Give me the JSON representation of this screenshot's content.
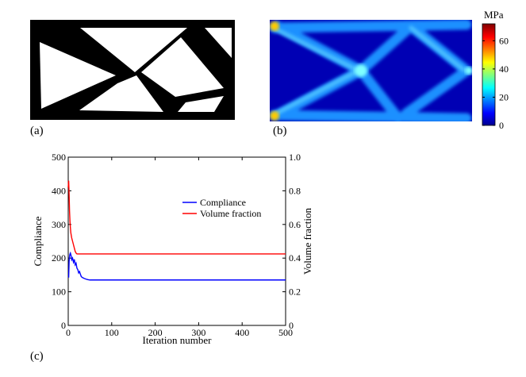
{
  "figure": {
    "panel_a_label": "(a)",
    "panel_b_label": "(b)",
    "panel_c_label": "(c)"
  },
  "panel_b": {
    "colorbar_unit": "MPa",
    "colorbar_ticks": [
      "0",
      "20",
      "40",
      "60"
    ],
    "colorbar_range": [
      0,
      72
    ],
    "colors": [
      "#00008f",
      "#0000ff",
      "#00ffff",
      "#ffff00",
      "#ff0000",
      "#800000"
    ]
  },
  "chart_data": {
    "type": "line",
    "title": "",
    "xlabel": "Iteration number",
    "ylabel": "Compliance",
    "y2label": "Volume fraction",
    "xlim": [
      0,
      500
    ],
    "ylim": [
      0,
      500
    ],
    "y2lim": [
      0,
      1.0
    ],
    "xticks": [
      "0",
      "100",
      "200",
      "300",
      "400",
      "500"
    ],
    "yticks": [
      "0",
      "100",
      "200",
      "300",
      "400",
      "500"
    ],
    "y2ticks": [
      "0",
      "0.2",
      "0.4",
      "0.6",
      "0.8",
      "1.0"
    ],
    "legend_position": "upper-right",
    "series": [
      {
        "name": "Compliance",
        "axis": "left",
        "color": "#0000ff",
        "x": [
          1,
          2,
          3,
          4,
          5,
          6,
          7,
          8,
          10,
          12,
          14,
          16,
          18,
          20,
          22,
          24,
          26,
          28,
          30,
          33,
          36,
          40,
          45,
          50,
          60,
          80,
          100,
          150,
          200,
          300,
          400,
          500
        ],
        "y": [
          142,
          190,
          205,
          212,
          215,
          210,
          205,
          195,
          200,
          188,
          196,
          180,
          185,
          170,
          166,
          156,
          160,
          152,
          145,
          142,
          140,
          138,
          136,
          135,
          135,
          135,
          135,
          135,
          135,
          135,
          135,
          135
        ]
      },
      {
        "name": "Volume fraction",
        "axis": "right",
        "color": "#ff0000",
        "x": [
          0,
          1,
          2,
          3,
          4,
          5,
          6,
          8,
          10,
          12,
          14,
          16,
          18,
          20,
          25,
          30,
          40,
          60,
          100,
          200,
          300,
          400,
          500
        ],
        "y": [
          0.82,
          0.86,
          0.78,
          0.68,
          0.62,
          0.58,
          0.55,
          0.52,
          0.5,
          0.48,
          0.46,
          0.44,
          0.43,
          0.425,
          0.425,
          0.425,
          0.425,
          0.425,
          0.425,
          0.425,
          0.425,
          0.425,
          0.425
        ]
      }
    ]
  }
}
